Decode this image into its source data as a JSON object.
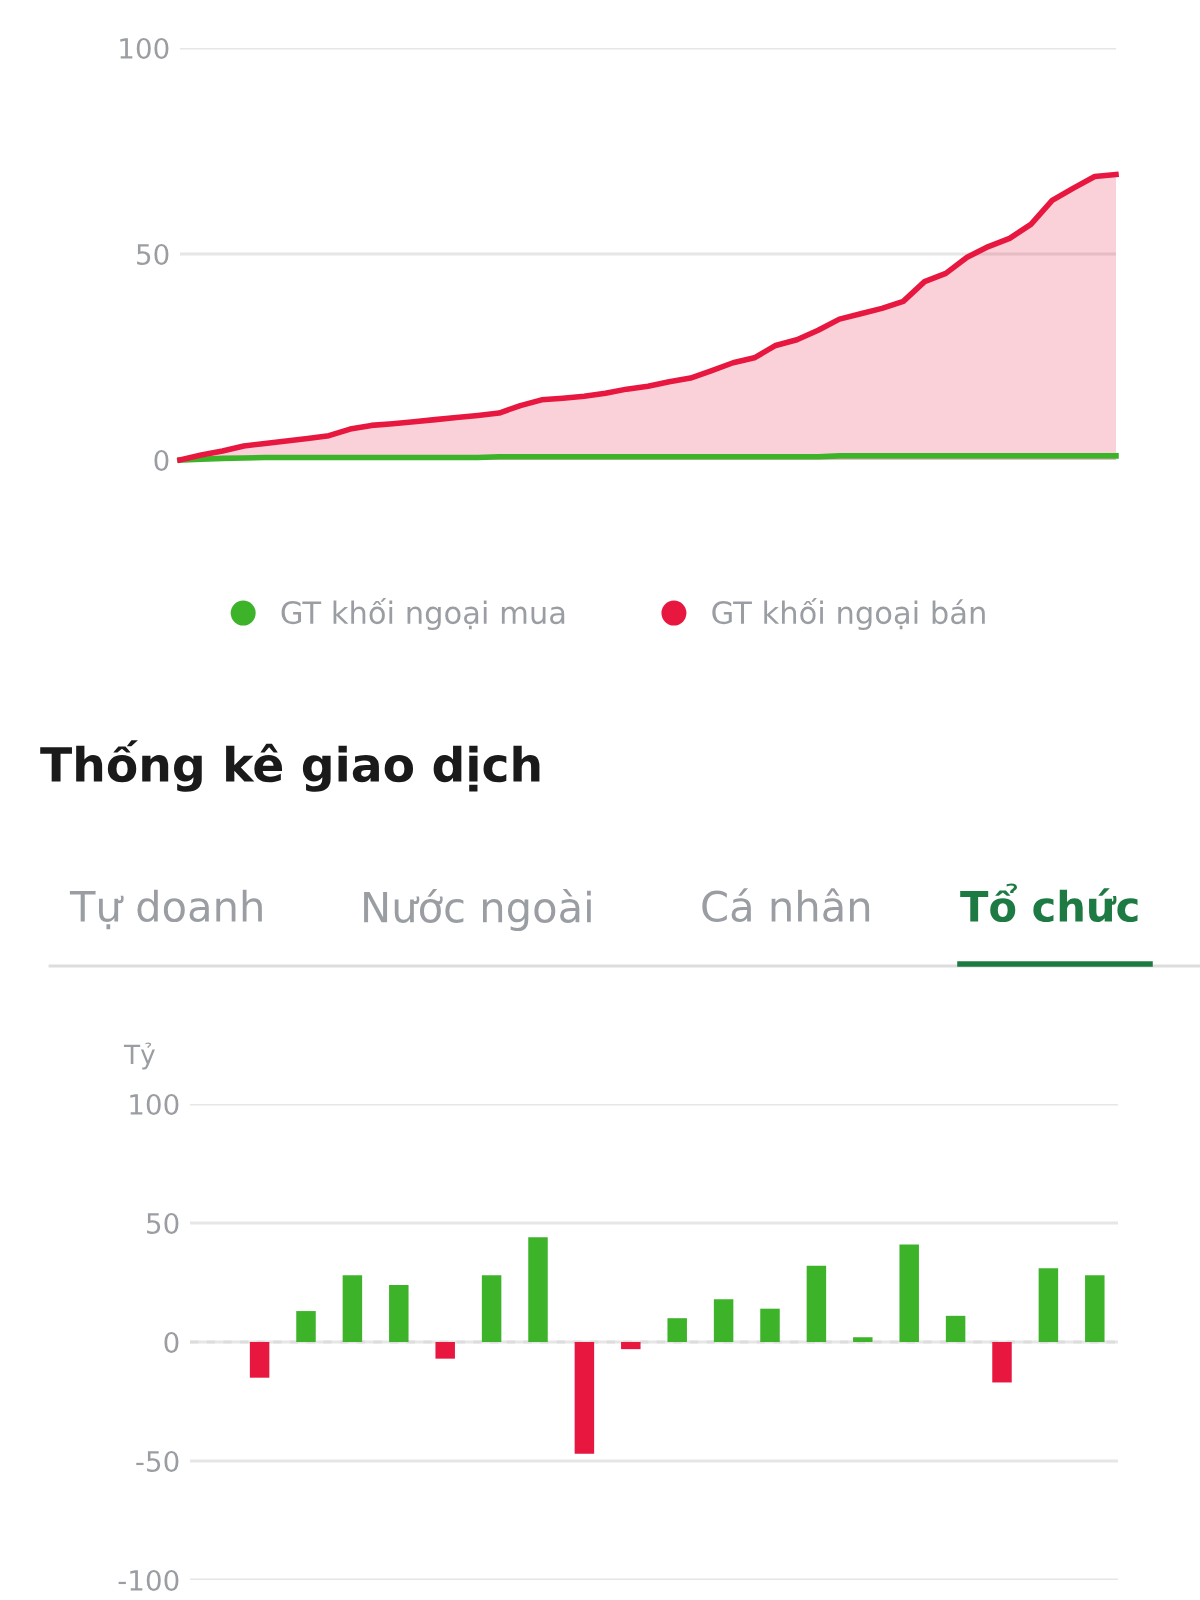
{
  "chart_data": [
    {
      "type": "line",
      "categories": [
        null,
        null,
        null,
        null,
        null,
        null,
        null,
        null,
        null,
        null,
        null,
        null,
        null,
        null,
        null,
        null,
        null,
        null,
        null,
        null,
        null,
        null,
        null,
        null,
        null,
        null,
        null,
        null,
        null,
        null,
        null,
        null,
        null,
        null,
        null,
        null,
        null,
        null,
        null,
        null,
        null,
        null,
        null,
        null,
        null
      ],
      "series": [
        {
          "name": "GT khối ngoại mua",
          "color": "#3db32a",
          "type": "line",
          "values": [
            0,
            0.2,
            0.4,
            0.5,
            0.6,
            0.6,
            0.6,
            0.6,
            0.6,
            0.6,
            0.6,
            0.6,
            0.6,
            0.6,
            0.6,
            0.8,
            0.8,
            0.8,
            0.8,
            0.8,
            0.8,
            0.8,
            0.8,
            0.8,
            0.8,
            0.8,
            0.8,
            0.8,
            0.8,
            0.8,
            0.8,
            1,
            1,
            1,
            1,
            1,
            1,
            1,
            1,
            1,
            1,
            1,
            1,
            1,
            1
          ]
        },
        {
          "name": "GT khối ngoại bán",
          "color": "#e8173f",
          "type": "area",
          "values": [
            0,
            1.2,
            2.2,
            3.4,
            4,
            4.6,
            5.2,
            5.9,
            7.5,
            8.4,
            8.8,
            9.3,
            9.8,
            10.3,
            10.8,
            11.4,
            13.2,
            14.6,
            15,
            15.5,
            16.2,
            17.2,
            17.9,
            19,
            19.9,
            21.7,
            23.6,
            24.8,
            27.8,
            29.2,
            31.5,
            34.2,
            35.5,
            36.8,
            38.5,
            43.3,
            45.3,
            49.2,
            51.8,
            53.8,
            57.2,
            63,
            66,
            68.8,
            69.3
          ]
        }
      ],
      "ylim": [
        0,
        100
      ],
      "yticks": [
        0,
        50,
        100
      ],
      "grid": "y",
      "legend": "bottom",
      "tick_labels": "y"
    },
    {
      "type": "bar",
      "title": "Thống kê giao dịch",
      "ylabel": "Tỷ",
      "annotations": [
        "Tự doanh",
        "Nước ngoài",
        "Cá nhân",
        "Tổ chức"
      ],
      "categories": [
        null,
        null,
        null,
        null,
        null,
        null,
        null,
        null,
        null,
        null,
        null,
        null,
        null,
        null,
        null,
        null,
        null,
        null,
        null,
        null
      ],
      "values": [
        null,
        -15,
        13,
        28,
        24,
        -7,
        28,
        44,
        -47,
        -3,
        10,
        18,
        14,
        32,
        2,
        41,
        11,
        -17,
        31,
        28
      ],
      "colors": [
        "#3db32a",
        "#e8173f",
        "#3db32a",
        "#3db32a",
        "#3db32a",
        "#e8173f",
        "#3db32a",
        "#3db32a",
        "#e8173f",
        "#e8173f",
        "#3db32a",
        "#3db32a",
        "#3db32a",
        "#3db32a",
        "#3db32a",
        "#3db32a",
        "#3db32a",
        "#e8173f",
        "#3db32a",
        "#3db32a"
      ],
      "ref_lines": [
        {
          "axis": "y",
          "value": 0,
          "color": "#dddddd",
          "line_style": "dashed"
        }
      ],
      "ylim": [
        -100,
        100
      ],
      "yticks": [
        -100,
        -50,
        0,
        50,
        100
      ],
      "grid": "y",
      "tick_labels": "y"
    }
  ]
}
